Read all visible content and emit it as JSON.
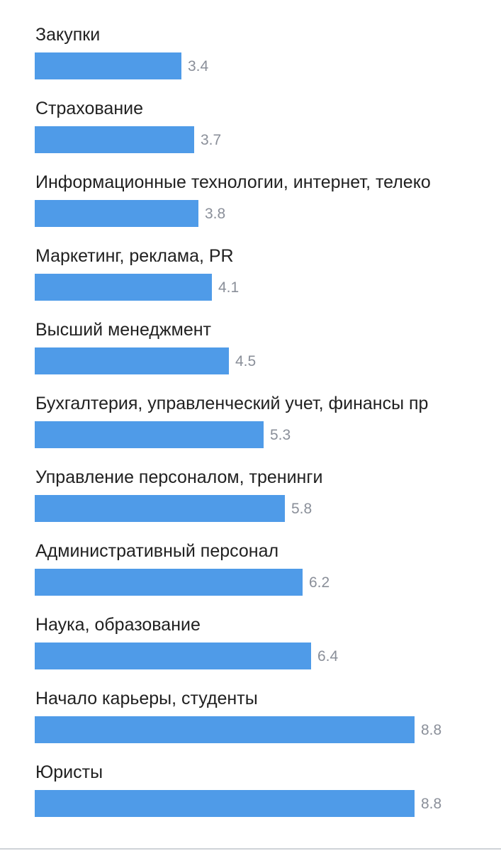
{
  "chart_data": {
    "type": "bar",
    "orientation": "horizontal",
    "title": "",
    "xlabel": "",
    "ylabel": "",
    "xlim": [
      0,
      8.8
    ],
    "grid": false,
    "legend": "none",
    "bar_color": "#4f9be8",
    "categories": [
      "Закупки",
      "Страхование",
      "Информационные технологии, интернет, телеко",
      "Маркетинг, реклама, PR",
      "Высший менеджмент",
      "Бухгалтерия, управленческий учет, финансы пр",
      "Управление персоналом, тренинги",
      "Административный персонал",
      "Наука, образование",
      "Начало карьеры, студенты",
      "Юристы"
    ],
    "values": [
      3.4,
      3.7,
      3.8,
      4.1,
      4.5,
      5.3,
      5.8,
      6.2,
      6.4,
      8.8,
      8.8
    ],
    "value_labels": [
      "3.4",
      "3.7",
      "3.8",
      "4.1",
      "4.5",
      "5.3",
      "5.8",
      "6.2",
      "6.4",
      "8.8",
      "8.8"
    ]
  }
}
